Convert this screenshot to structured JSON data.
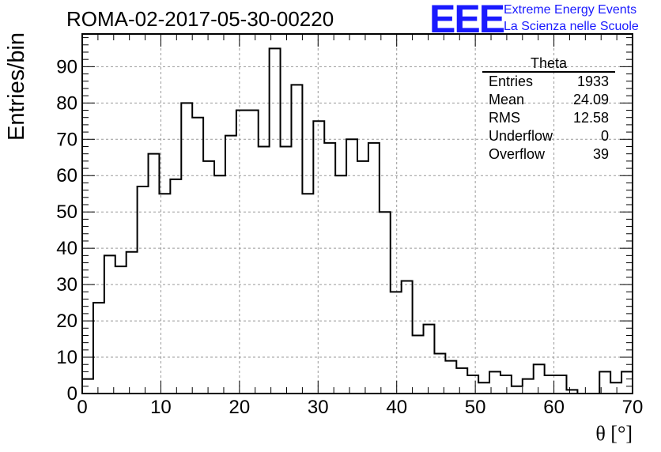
{
  "title": "ROMA-02-2017-05-30-00220",
  "logo": {
    "mark": "EEE",
    "line1": "Extreme Energy Events",
    "line2": "La Scienza nelle Scuole"
  },
  "stats_box": {
    "title": "Theta",
    "rows": [
      {
        "label": "Entries",
        "value": "1933"
      },
      {
        "label": "Mean",
        "value": "24.09"
      },
      {
        "label": "RMS",
        "value": "12.58"
      },
      {
        "label": "Underflow",
        "value": "0"
      },
      {
        "label": "Overflow",
        "value": "39"
      }
    ]
  },
  "chart_data": {
    "type": "bar",
    "style": "step-histogram",
    "title": "ROMA-02-2017-05-30-00220",
    "xlabel": "θ [°]",
    "ylabel": "Entries/bin",
    "xlim": [
      0,
      70
    ],
    "ylim": [
      0,
      99
    ],
    "grid": true,
    "bin_width": 1.4,
    "x_ticks": [
      0,
      10,
      20,
      30,
      40,
      50,
      60,
      70
    ],
    "y_ticks": [
      0,
      10,
      20,
      30,
      40,
      50,
      60,
      70,
      80,
      90
    ],
    "values": [
      4,
      25,
      38,
      35,
      39,
      57,
      66,
      55,
      59,
      80,
      76,
      64,
      60,
      71,
      78,
      78,
      68,
      95,
      68,
      85,
      55,
      75,
      69,
      60,
      70,
      64,
      69,
      50,
      28,
      31,
      16,
      19,
      11,
      9,
      7,
      5,
      3,
      6,
      5,
      2,
      4,
      8,
      5,
      5,
      1,
      0,
      0,
      6,
      3,
      6
    ]
  }
}
